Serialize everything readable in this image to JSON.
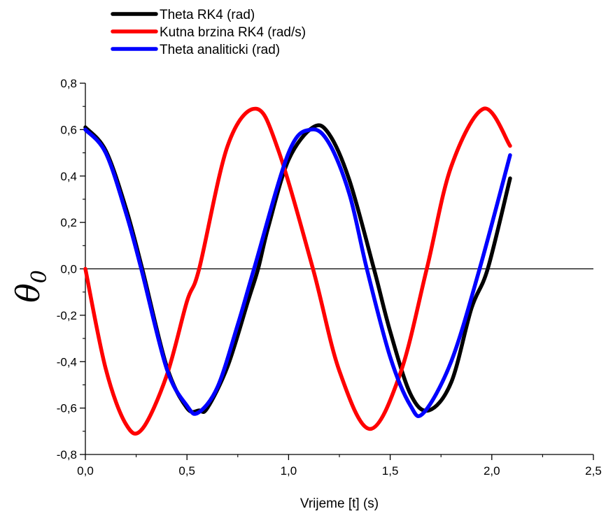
{
  "chart_data": {
    "type": "line",
    "title": "",
    "xlabel": "Vrijeme [t] (s)",
    "ylabel": "θ",
    "ylabel_subscript": "0",
    "xlim": [
      0,
      2.5
    ],
    "ylim": [
      -0.8,
      0.8
    ],
    "x_ticks": [
      0.0,
      0.5,
      1.0,
      1.5,
      2.0,
      2.5
    ],
    "x_tick_labels": [
      "0,0",
      "0,5",
      "1,0",
      "1,5",
      "2,0",
      "2,5"
    ],
    "y_ticks": [
      -0.8,
      -0.6,
      -0.4,
      -0.2,
      0.0,
      0.2,
      0.4,
      0.6,
      0.8
    ],
    "y_tick_labels": [
      "-0,8",
      "-0,6",
      "-0,4",
      "-0,2",
      "0,0",
      "0,2",
      "0,4",
      "0,6",
      "0,8"
    ],
    "zero_line": true,
    "grid": false,
    "legend_position": "top-left",
    "series": [
      {
        "name": "Theta RK4 (rad)",
        "color": "#000000",
        "x": [
          0.0,
          0.1,
          0.2,
          0.28,
          0.4,
          0.5,
          0.56,
          0.6,
          0.7,
          0.8,
          0.85,
          0.9,
          1.0,
          1.12,
          1.2,
          1.3,
          1.42,
          1.5,
          1.6,
          1.69,
          1.8,
          1.9,
          1.98,
          2.09
        ],
        "y": [
          0.61,
          0.51,
          0.26,
          0.0,
          -0.42,
          -0.6,
          -0.61,
          -0.6,
          -0.42,
          -0.14,
          0.0,
          0.18,
          0.47,
          0.61,
          0.58,
          0.38,
          0.0,
          -0.27,
          -0.54,
          -0.61,
          -0.49,
          -0.17,
          0.0,
          0.39
        ]
      },
      {
        "name": "Kutna brzina RK4 (rad/s)",
        "color": "#ff0000",
        "x": [
          0.0,
          0.1,
          0.2,
          0.28,
          0.4,
          0.5,
          0.56,
          0.7,
          0.84,
          0.95,
          1.12,
          1.25,
          1.4,
          1.55,
          1.68,
          1.8,
          1.96,
          2.09
        ],
        "y": [
          0.0,
          -0.43,
          -0.67,
          -0.69,
          -0.46,
          -0.14,
          0.0,
          0.53,
          0.69,
          0.51,
          0.0,
          -0.44,
          -0.69,
          -0.45,
          0.0,
          0.44,
          0.69,
          0.53
        ]
      },
      {
        "name": "Theta analiticki (rad)",
        "color": "#0000ff",
        "x": [
          0.0,
          0.1,
          0.2,
          0.275,
          0.4,
          0.5,
          0.555,
          0.65,
          0.75,
          0.83,
          1.0,
          1.11,
          1.2,
          1.3,
          1.385,
          1.5,
          1.6,
          1.665,
          1.8,
          1.94,
          2.09
        ],
        "y": [
          0.6,
          0.5,
          0.24,
          0.0,
          -0.43,
          -0.59,
          -0.62,
          -0.51,
          -0.24,
          0.0,
          0.5,
          0.6,
          0.54,
          0.32,
          0.0,
          -0.38,
          -0.59,
          -0.62,
          -0.4,
          0.0,
          0.49
        ]
      }
    ]
  }
}
